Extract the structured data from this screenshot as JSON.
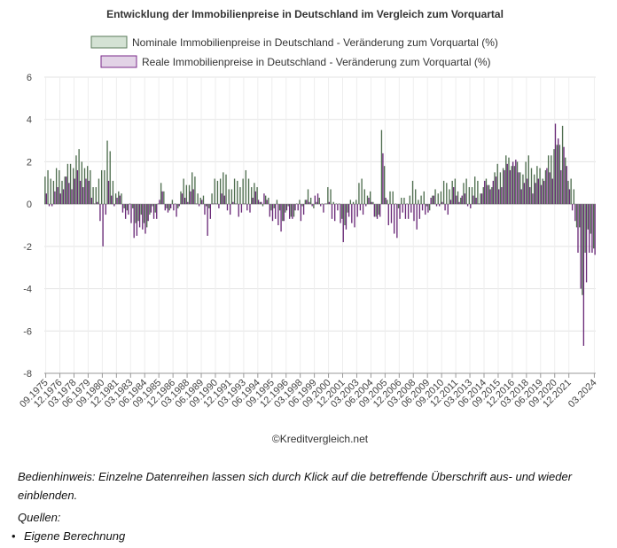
{
  "chart_data": {
    "type": "bar",
    "title": "Entwicklung der Immobilienpreise in Deutschland im Vergleich zum Vorquartal",
    "credit": "©Kreditvergleich.net",
    "ylim": [
      -8,
      6
    ],
    "yticks": [
      6,
      4,
      2,
      0,
      -2,
      -4,
      -6,
      -8
    ],
    "x_start": "09.1975",
    "x_end": "03.2024",
    "x_tick_labels": [
      "09.1975",
      "12.1976",
      "03.1978",
      "06.1979",
      "09.1980",
      "12.1981",
      "03.1983",
      "06.1984",
      "09.1985",
      "12.1986",
      "03.1988",
      "06.1989",
      "09.1990",
      "12.1991",
      "03.1993",
      "06.1994",
      "09.1995",
      "12.1996",
      "03.1998",
      "06.1999",
      "09.2000",
      "12.2001",
      "03.2003",
      "06.2004",
      "09.2005",
      "12.2006",
      "03.2008",
      "06.2009",
      "09.2010",
      "12.2011",
      "03.2013",
      "06.2014",
      "09.2015",
      "12.2016",
      "03.2018",
      "06.2019",
      "09.2020",
      "12.2021",
      "03.2024"
    ],
    "grid": true,
    "legend_position": "top-center",
    "series": [
      {
        "name": "Nominale Immobilienpreise in Deutschland - Veränderung zum Vorquartal (%)",
        "color": "#d4e2d4",
        "border": "#5a7a5a",
        "anchors": [
          [
            1975.75,
            1.1
          ],
          [
            1976.5,
            1.4
          ],
          [
            1977.5,
            1.7
          ],
          [
            1978.25,
            2.1
          ],
          [
            1979.0,
            2.0
          ],
          [
            1979.5,
            1.5
          ],
          [
            1980.25,
            0.9
          ],
          [
            1980.75,
            1.8
          ],
          [
            1981.0,
            2.8
          ],
          [
            1981.5,
            1.2
          ],
          [
            1982.25,
            0.4
          ],
          [
            1983.0,
            -0.4
          ],
          [
            1983.75,
            -0.9
          ],
          [
            1984.5,
            -0.6
          ],
          [
            1985.25,
            -0.2
          ],
          [
            1985.75,
            0.5
          ],
          [
            1986.5,
            -0.2
          ],
          [
            1987.25,
            0.3
          ],
          [
            1987.75,
            0.9
          ],
          [
            1988.5,
            1.1
          ],
          [
            1989.25,
            0.6
          ],
          [
            1989.75,
            0.0
          ],
          [
            1990.5,
            0.7
          ],
          [
            1991.0,
            1.3
          ],
          [
            1991.75,
            1.1
          ],
          [
            1993.0,
            1.1
          ],
          [
            1993.75,
            1.0
          ],
          [
            1994.5,
            0.5
          ],
          [
            1995.25,
            0.1
          ],
          [
            1995.75,
            -0.3
          ],
          [
            1996.5,
            -0.4
          ],
          [
            1997.25,
            -0.2
          ],
          [
            1997.75,
            -0.3
          ],
          [
            1998.5,
            0.2
          ],
          [
            1999.25,
            0.3
          ],
          [
            1999.75,
            0.1
          ],
          [
            2000.5,
            0.4
          ],
          [
            2001.25,
            0.1
          ],
          [
            2001.75,
            -0.6
          ],
          [
            2002.5,
            -0.1
          ],
          [
            2003.25,
            0.6
          ],
          [
            2003.75,
            0.9
          ],
          [
            2004.5,
            0.2
          ],
          [
            2005.0,
            -0.4
          ],
          [
            2005.25,
            3.1
          ],
          [
            2005.75,
            0.3
          ],
          [
            2006.5,
            0.2
          ],
          [
            2007.25,
            0.3
          ],
          [
            2008.0,
            0.6
          ],
          [
            2008.75,
            0.3
          ],
          [
            2009.5,
            0.2
          ],
          [
            2010.25,
            0.7
          ],
          [
            2010.75,
            0.6
          ],
          [
            2011.5,
            1.1
          ],
          [
            2012.25,
            0.8
          ],
          [
            2012.75,
            0.9
          ],
          [
            2013.5,
            0.8
          ],
          [
            2014.25,
            1.0
          ],
          [
            2014.75,
            1.1
          ],
          [
            2015.5,
            1.4
          ],
          [
            2016.25,
            1.9
          ],
          [
            2016.75,
            2.3
          ],
          [
            2017.5,
            1.6
          ],
          [
            2018.25,
            1.8
          ],
          [
            2018.75,
            1.6
          ],
          [
            2019.5,
            1.7
          ],
          [
            2020.25,
            2.2
          ],
          [
            2020.5,
            2.8
          ],
          [
            2021.0,
            2.3
          ],
          [
            2021.25,
            3.8
          ],
          [
            2021.5,
            2.6
          ],
          [
            2021.75,
            1.1
          ],
          [
            2022.25,
            1.1
          ],
          [
            2022.5,
            -0.9
          ],
          [
            2022.75,
            -1.5
          ],
          [
            2023.0,
            -4.6
          ],
          [
            2023.25,
            -2.2
          ],
          [
            2023.5,
            -1.4
          ],
          [
            2023.75,
            -1.8
          ],
          [
            2024.0,
            -2.0
          ],
          [
            2024.25,
            -2.4
          ]
        ]
      },
      {
        "name": "Reale Immobilienpreise in Deutschland - Veränderung zum Vorquartal (%)",
        "color": "#e2d3e6",
        "border": "#7a2a8a",
        "anchors": [
          [
            1975.75,
            0.3
          ],
          [
            1976.5,
            0.5
          ],
          [
            1977.5,
            0.9
          ],
          [
            1978.25,
            1.5
          ],
          [
            1979.0,
            1.0
          ],
          [
            1979.5,
            0.4
          ],
          [
            1980.0,
            -0.3
          ],
          [
            1980.5,
            -1.5
          ],
          [
            1981.0,
            0.9
          ],
          [
            1981.5,
            0.2
          ],
          [
            1982.25,
            -0.3
          ],
          [
            1983.0,
            -0.9
          ],
          [
            1983.75,
            -1.4
          ],
          [
            1984.5,
            -1.1
          ],
          [
            1985.25,
            -0.4
          ],
          [
            1985.75,
            0.6
          ],
          [
            1986.5,
            -0.6
          ],
          [
            1987.25,
            -0.3
          ],
          [
            1987.75,
            0.5
          ],
          [
            1988.5,
            0.6
          ],
          [
            1989.25,
            -0.3
          ],
          [
            1989.75,
            -1.3
          ],
          [
            1990.5,
            0.2
          ],
          [
            1991.0,
            0.5
          ],
          [
            1991.75,
            -0.4
          ],
          [
            1993.0,
            -0.2
          ],
          [
            1993.75,
            0.2
          ],
          [
            1994.5,
            0.2
          ],
          [
            1995.25,
            -0.2
          ],
          [
            1995.75,
            -0.8
          ],
          [
            1996.5,
            -0.9
          ],
          [
            1997.25,
            -0.6
          ],
          [
            1997.75,
            -0.5
          ],
          [
            1998.5,
            0.0
          ],
          [
            1999.25,
            0.2
          ],
          [
            1999.75,
            -0.2
          ],
          [
            2000.5,
            0.0
          ],
          [
            2001.25,
            -0.6
          ],
          [
            2001.75,
            -1.6
          ],
          [
            2002.5,
            -0.9
          ],
          [
            2003.25,
            -0.4
          ],
          [
            2003.75,
            0.2
          ],
          [
            2004.5,
            -0.5
          ],
          [
            2005.0,
            -1.0
          ],
          [
            2005.25,
            2.5
          ],
          [
            2005.75,
            -0.9
          ],
          [
            2006.5,
            -1.4
          ],
          [
            2007.25,
            -0.5
          ],
          [
            2008.0,
            -0.7
          ],
          [
            2008.75,
            -0.6
          ],
          [
            2009.5,
            -0.1
          ],
          [
            2010.25,
            0.2
          ],
          [
            2010.75,
            -0.2
          ],
          [
            2011.5,
            0.4
          ],
          [
            2012.25,
            0.1
          ],
          [
            2012.75,
            0.2
          ],
          [
            2013.5,
            0.3
          ],
          [
            2014.25,
            0.6
          ],
          [
            2014.75,
            0.9
          ],
          [
            2015.5,
            1.1
          ],
          [
            2016.25,
            1.7
          ],
          [
            2016.75,
            1.9
          ],
          [
            2017.5,
            1.0
          ],
          [
            2018.25,
            1.1
          ],
          [
            2018.75,
            0.8
          ],
          [
            2019.5,
            1.1
          ],
          [
            2020.25,
            1.6
          ],
          [
            2020.5,
            4.0
          ],
          [
            2021.0,
            1.8
          ],
          [
            2021.25,
            3.0
          ],
          [
            2021.5,
            1.5
          ],
          [
            2021.75,
            0.2
          ],
          [
            2022.25,
            -0.7
          ],
          [
            2022.5,
            -2.6
          ],
          [
            2022.75,
            -4.0
          ],
          [
            2023.0,
            -6.2
          ],
          [
            2023.25,
            -3.5
          ],
          [
            2023.5,
            -2.5
          ],
          [
            2023.75,
            -2.2
          ],
          [
            2024.0,
            -2.2
          ],
          [
            2024.25,
            -2.5
          ]
        ]
      }
    ]
  },
  "notes": {
    "hint": "Bedienhinweis: Einzelne Datenreihen lassen sich durch Klick auf die betreffende Überschrift aus- und wieder einblenden.",
    "sources_heading": "Quellen:",
    "sources": [
      "Eigene Berechnung"
    ]
  }
}
